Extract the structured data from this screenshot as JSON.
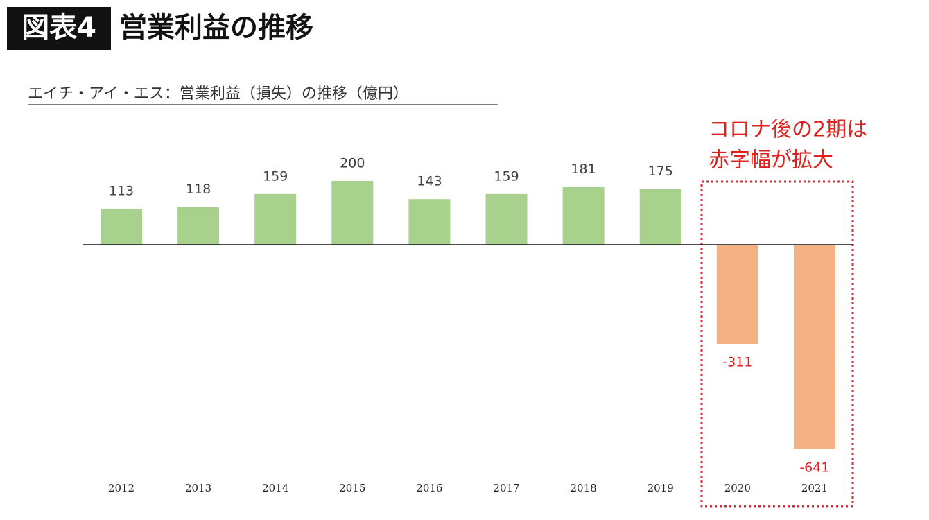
{
  "chart_data": {
    "type": "bar",
    "title_label": "図表4",
    "title": "営業利益の推移",
    "subtitle": "エイチ・アイ・エス：営業利益（損失）の推移（億円）",
    "annotation": [
      "コロナ後の2期は",
      "赤字幅が拡大"
    ],
    "categories": [
      "2012",
      "2013",
      "2014",
      "2015",
      "2016",
      "2017",
      "2018",
      "2019",
      "2020",
      "2021"
    ],
    "values": [
      113,
      118,
      159,
      200,
      143,
      159,
      181,
      175,
      -311,
      -641
    ],
    "color": "#a9d18e",
    "negative_color": "#f4b183",
    "label_color": "#404040",
    "negative_label_color": "#e0201c"
  }
}
